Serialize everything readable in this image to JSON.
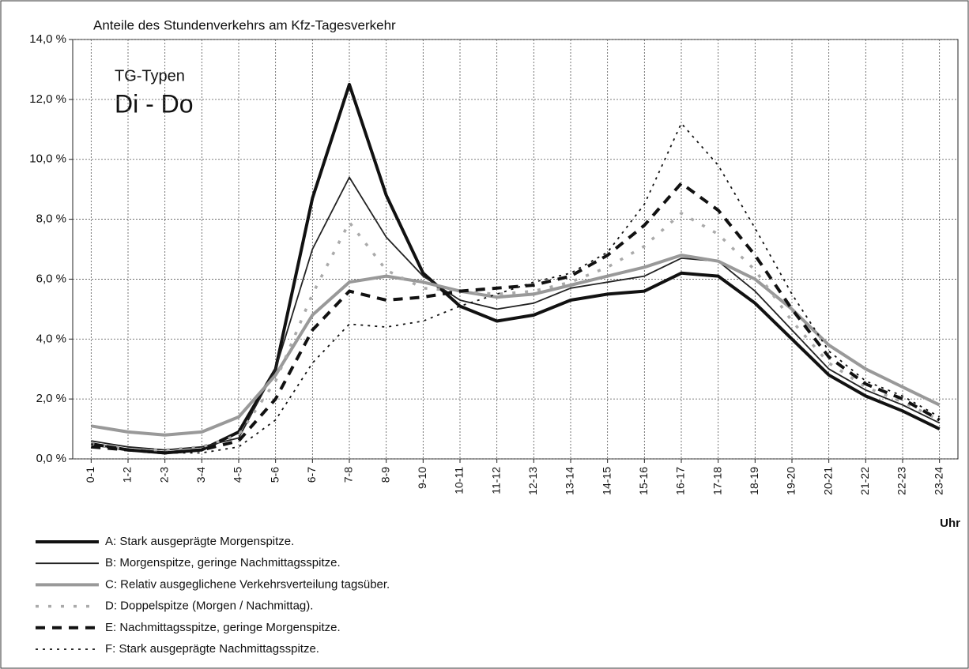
{
  "chart_data": {
    "type": "line",
    "title": "Anteile des Stundenverkehrs am Kfz-Tagesverkehr",
    "annotations": [
      "TG-Typen",
      "Di - Do"
    ],
    "x_label": "Uhr",
    "categories": [
      "0-1",
      "1-2",
      "2-3",
      "3-4",
      "4-5",
      "5-6",
      "6-7",
      "7-8",
      "8-9",
      "9-10",
      "10-11",
      "11-12",
      "12-13",
      "13-14",
      "14-15",
      "15-16",
      "16-17",
      "17-18",
      "18-19",
      "19-20",
      "20-21",
      "21-22",
      "22-23",
      "23-24"
    ],
    "ylim": [
      0,
      14
    ],
    "yticks": [
      {
        "value": 0,
        "label": "0,0 %"
      },
      {
        "value": 2,
        "label": "2,0 %"
      },
      {
        "value": 4,
        "label": "4,0 %"
      },
      {
        "value": 6,
        "label": "6,0 %"
      },
      {
        "value": 8,
        "label": "8,0 %"
      },
      {
        "value": 10,
        "label": "10,0 %"
      },
      {
        "value": 12,
        "label": "12,0 %"
      },
      {
        "value": 14,
        "label": "14,0 %"
      }
    ],
    "grid": true,
    "legend": "bottom-left",
    "series": [
      {
        "name": "A: Stark ausgeprägte Morgenspitze.",
        "color": "#111111",
        "width": 4,
        "dash": "none",
        "values": [
          0.5,
          0.3,
          0.2,
          0.3,
          0.9,
          3.0,
          8.7,
          12.5,
          8.8,
          6.2,
          5.1,
          4.6,
          4.8,
          5.3,
          5.5,
          5.6,
          6.2,
          6.1,
          5.2,
          4.0,
          2.8,
          2.1,
          1.6,
          1.0
        ]
      },
      {
        "name": "B: Morgenspitze, geringe Nachmittagsspitze.",
        "color": "#222222",
        "width": 1.8,
        "dash": "none",
        "values": [
          0.6,
          0.4,
          0.3,
          0.4,
          0.7,
          3.0,
          7.0,
          9.4,
          7.4,
          6.1,
          5.3,
          5.0,
          5.2,
          5.7,
          5.9,
          6.1,
          6.7,
          6.6,
          5.6,
          4.3,
          3.0,
          2.3,
          1.8,
          1.2
        ]
      },
      {
        "name": "C: Relativ ausgeglichene Verkehrsverteilung tagsüber.",
        "color": "#999999",
        "width": 4,
        "dash": "none",
        "values": [
          1.1,
          0.9,
          0.8,
          0.9,
          1.4,
          2.8,
          4.8,
          5.9,
          6.1,
          5.9,
          5.6,
          5.4,
          5.5,
          5.8,
          6.1,
          6.4,
          6.8,
          6.6,
          6.0,
          5.0,
          3.8,
          3.0,
          2.4,
          1.8
        ]
      },
      {
        "name": "D: Doppelspitze (Morgen / Nachmittag).",
        "color": "#aaaaaa",
        "width": 3.5,
        "dash": "4 12",
        "values": [
          0.5,
          0.3,
          0.3,
          0.4,
          0.8,
          2.6,
          5.5,
          7.9,
          6.3,
          5.7,
          5.6,
          5.5,
          5.6,
          5.9,
          6.4,
          7.1,
          8.2,
          7.5,
          6.3,
          4.6,
          3.2,
          2.4,
          1.9,
          1.3
        ]
      },
      {
        "name": "E: Nachmittagsspitze, geringe Morgenspitze.",
        "color": "#111111",
        "width": 4,
        "dash": "12 9",
        "values": [
          0.4,
          0.3,
          0.2,
          0.3,
          0.6,
          2.0,
          4.3,
          5.6,
          5.3,
          5.4,
          5.6,
          5.7,
          5.8,
          6.1,
          6.8,
          7.8,
          9.2,
          8.3,
          6.8,
          5.0,
          3.4,
          2.5,
          2.0,
          1.3
        ]
      },
      {
        "name": "F: Stark ausgeprägte Nachmittagsspitze.",
        "color": "#111111",
        "width": 1.8,
        "dash": "3 6",
        "values": [
          0.5,
          0.3,
          0.2,
          0.2,
          0.4,
          1.3,
          3.2,
          4.5,
          4.4,
          4.6,
          5.1,
          5.5,
          5.9,
          6.2,
          6.9,
          8.5,
          11.2,
          9.8,
          7.7,
          5.5,
          3.6,
          2.6,
          2.1,
          1.4
        ]
      }
    ]
  }
}
